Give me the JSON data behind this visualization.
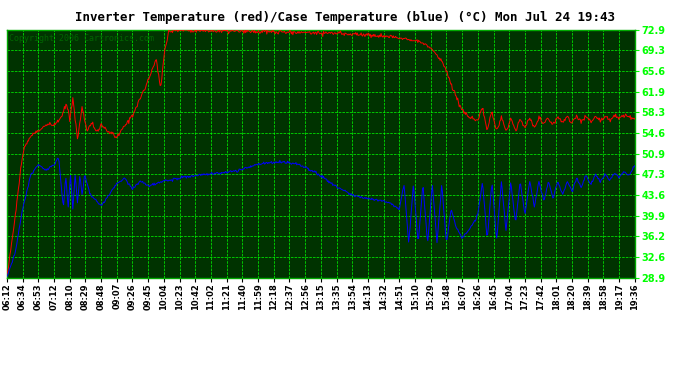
{
  "title": "Inverter Temperature (red)/Case Temperature (blue) (°C) Mon Jul 24 19:43",
  "copyright": "Copyright 2006 Cartronics.com",
  "ylabel_right": [
    "72.9",
    "69.3",
    "65.6",
    "61.9",
    "58.3",
    "54.6",
    "50.9",
    "47.3",
    "43.6",
    "39.9",
    "36.2",
    "32.6",
    "28.9"
  ],
  "ymin": 28.9,
  "ymax": 72.9,
  "fig_bg_color": "#ffffff",
  "plot_bg_color": "#003300",
  "grid_color": "#00ff00",
  "red_color": "#ff0000",
  "blue_color": "#0000ff",
  "title_color": "#000000",
  "copyright_color": "#006600",
  "x_tick_labels": [
    "06:12",
    "06:34",
    "06:53",
    "07:12",
    "08:10",
    "08:29",
    "08:48",
    "09:07",
    "09:26",
    "09:45",
    "10:04",
    "10:23",
    "10:42",
    "11:02",
    "11:21",
    "11:40",
    "11:59",
    "12:18",
    "12:37",
    "12:56",
    "13:15",
    "13:35",
    "13:54",
    "14:13",
    "14:32",
    "14:51",
    "15:10",
    "15:29",
    "15:48",
    "16:07",
    "16:26",
    "16:45",
    "17:04",
    "17:23",
    "17:42",
    "18:01",
    "18:20",
    "18:39",
    "18:58",
    "19:17",
    "19:36"
  ],
  "figwidth": 6.9,
  "figheight": 3.75,
  "dpi": 100
}
